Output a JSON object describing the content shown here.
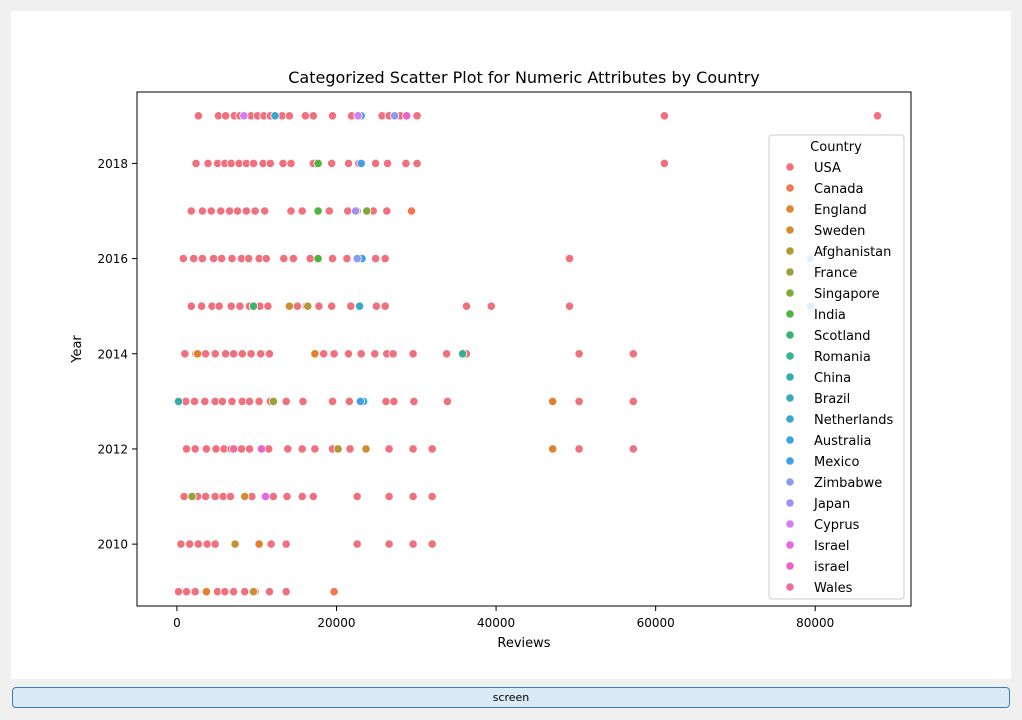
{
  "button": {
    "label": "screen"
  },
  "chart_data": {
    "type": "scatter",
    "title": "Categorized Scatter Plot for Numeric Attributes by Country",
    "xlabel": "Reviews",
    "ylabel": "Year",
    "xlim": [
      -5000,
      92000
    ],
    "ylim": [
      2008.7,
      2019.5
    ],
    "xticks": [
      0,
      20000,
      40000,
      60000,
      80000
    ],
    "xtick_labels": [
      "0",
      "20000",
      "40000",
      "60000",
      "80000"
    ],
    "yticks": [
      2010,
      2012,
      2014,
      2016,
      2018
    ],
    "ytick_labels": [
      "2010",
      "2012",
      "2014",
      "2016",
      "2018"
    ],
    "grid": false,
    "legend": {
      "title": "Country",
      "placement": "right"
    },
    "series": [
      {
        "name": "USA",
        "color": "#f0707e",
        "points": [
          [
            2700,
            2019
          ],
          [
            5200,
            2019
          ],
          [
            6100,
            2019
          ],
          [
            7200,
            2019
          ],
          [
            7900,
            2019
          ],
          [
            8600,
            2019
          ],
          [
            9300,
            2019
          ],
          [
            10100,
            2019
          ],
          [
            10900,
            2019
          ],
          [
            11700,
            2019
          ],
          [
            13200,
            2019
          ],
          [
            14100,
            2019
          ],
          [
            16100,
            2019
          ],
          [
            17100,
            2019
          ],
          [
            19500,
            2019
          ],
          [
            21900,
            2019
          ],
          [
            25700,
            2019
          ],
          [
            26600,
            2019
          ],
          [
            28000,
            2019
          ],
          [
            30100,
            2019
          ],
          [
            61100,
            2019
          ],
          [
            87800,
            2019
          ],
          [
            2400,
            2018
          ],
          [
            3900,
            2018
          ],
          [
            5100,
            2018
          ],
          [
            6000,
            2018
          ],
          [
            6800,
            2018
          ],
          [
            7800,
            2018
          ],
          [
            8700,
            2018
          ],
          [
            9600,
            2018
          ],
          [
            10800,
            2018
          ],
          [
            11700,
            2018
          ],
          [
            13300,
            2018
          ],
          [
            14300,
            2018
          ],
          [
            17100,
            2018
          ],
          [
            19400,
            2018
          ],
          [
            21500,
            2018
          ],
          [
            22800,
            2018
          ],
          [
            24900,
            2018
          ],
          [
            26400,
            2018
          ],
          [
            28700,
            2018
          ],
          [
            30100,
            2018
          ],
          [
            61100,
            2018
          ],
          [
            1800,
            2017
          ],
          [
            3200,
            2017
          ],
          [
            4300,
            2017
          ],
          [
            5500,
            2017
          ],
          [
            6600,
            2017
          ],
          [
            7600,
            2017
          ],
          [
            8700,
            2017
          ],
          [
            9800,
            2017
          ],
          [
            11000,
            2017
          ],
          [
            14300,
            2017
          ],
          [
            15700,
            2017
          ],
          [
            17700,
            2017
          ],
          [
            19100,
            2017
          ],
          [
            21400,
            2017
          ],
          [
            22600,
            2017
          ],
          [
            24600,
            2017
          ],
          [
            26300,
            2017
          ],
          [
            800,
            2016
          ],
          [
            2100,
            2016
          ],
          [
            3200,
            2016
          ],
          [
            4600,
            2016
          ],
          [
            5600,
            2016
          ],
          [
            6900,
            2016
          ],
          [
            8100,
            2016
          ],
          [
            9000,
            2016
          ],
          [
            10300,
            2016
          ],
          [
            11200,
            2016
          ],
          [
            13400,
            2016
          ],
          [
            14600,
            2016
          ],
          [
            16700,
            2016
          ],
          [
            19500,
            2016
          ],
          [
            21300,
            2016
          ],
          [
            22700,
            2016
          ],
          [
            24900,
            2016
          ],
          [
            26100,
            2016
          ],
          [
            49200,
            2016
          ],
          [
            1800,
            2015
          ],
          [
            3100,
            2015
          ],
          [
            4400,
            2015
          ],
          [
            5300,
            2015
          ],
          [
            6800,
            2015
          ],
          [
            7900,
            2015
          ],
          [
            9100,
            2015
          ],
          [
            10400,
            2015
          ],
          [
            11400,
            2015
          ],
          [
            15100,
            2015
          ],
          [
            16200,
            2015
          ],
          [
            17800,
            2015
          ],
          [
            19400,
            2015
          ],
          [
            21800,
            2015
          ],
          [
            25000,
            2015
          ],
          [
            26100,
            2015
          ],
          [
            36300,
            2015
          ],
          [
            39400,
            2015
          ],
          [
            49200,
            2015
          ],
          [
            1000,
            2014
          ],
          [
            2400,
            2014
          ],
          [
            3600,
            2014
          ],
          [
            4800,
            2014
          ],
          [
            6100,
            2014
          ],
          [
            7100,
            2014
          ],
          [
            8200,
            2014
          ],
          [
            9300,
            2014
          ],
          [
            10500,
            2014
          ],
          [
            11600,
            2014
          ],
          [
            18400,
            2014
          ],
          [
            19700,
            2014
          ],
          [
            21500,
            2014
          ],
          [
            23100,
            2014
          ],
          [
            24800,
            2014
          ],
          [
            26300,
            2014
          ],
          [
            27100,
            2014
          ],
          [
            29600,
            2014
          ],
          [
            33800,
            2014
          ],
          [
            36300,
            2014
          ],
          [
            50400,
            2014
          ],
          [
            57200,
            2014
          ],
          [
            1100,
            2013
          ],
          [
            2200,
            2013
          ],
          [
            3500,
            2013
          ],
          [
            4800,
            2013
          ],
          [
            5700,
            2013
          ],
          [
            6900,
            2013
          ],
          [
            8200,
            2013
          ],
          [
            9100,
            2013
          ],
          [
            10300,
            2013
          ],
          [
            11700,
            2013
          ],
          [
            13700,
            2013
          ],
          [
            15800,
            2013
          ],
          [
            19500,
            2013
          ],
          [
            21600,
            2013
          ],
          [
            26200,
            2013
          ],
          [
            27200,
            2013
          ],
          [
            29700,
            2013
          ],
          [
            33900,
            2013
          ],
          [
            50400,
            2013
          ],
          [
            57200,
            2013
          ],
          [
            1200,
            2012
          ],
          [
            2300,
            2012
          ],
          [
            3700,
            2012
          ],
          [
            4900,
            2012
          ],
          [
            5900,
            2012
          ],
          [
            6800,
            2012
          ],
          [
            8100,
            2012
          ],
          [
            9100,
            2012
          ],
          [
            10600,
            2012
          ],
          [
            11500,
            2012
          ],
          [
            13900,
            2012
          ],
          [
            15700,
            2012
          ],
          [
            17300,
            2012
          ],
          [
            19500,
            2012
          ],
          [
            21700,
            2012
          ],
          [
            26600,
            2012
          ],
          [
            29600,
            2012
          ],
          [
            32000,
            2012
          ],
          [
            50400,
            2012
          ],
          [
            57200,
            2012
          ],
          [
            900,
            2011
          ],
          [
            2600,
            2011
          ],
          [
            3600,
            2011
          ],
          [
            4800,
            2011
          ],
          [
            5800,
            2011
          ],
          [
            6700,
            2011
          ],
          [
            8500,
            2011
          ],
          [
            9400,
            2011
          ],
          [
            12100,
            2011
          ],
          [
            13800,
            2011
          ],
          [
            15700,
            2011
          ],
          [
            17100,
            2011
          ],
          [
            22600,
            2011
          ],
          [
            26600,
            2011
          ],
          [
            29600,
            2011
          ],
          [
            32000,
            2011
          ],
          [
            500,
            2010
          ],
          [
            1600,
            2010
          ],
          [
            2700,
            2010
          ],
          [
            3800,
            2010
          ],
          [
            4800,
            2010
          ],
          [
            11800,
            2010
          ],
          [
            13700,
            2010
          ],
          [
            22600,
            2010
          ],
          [
            26600,
            2010
          ],
          [
            29600,
            2010
          ],
          [
            32000,
            2010
          ],
          [
            200,
            2009
          ],
          [
            1200,
            2009
          ],
          [
            2300,
            2009
          ],
          [
            3700,
            2009
          ],
          [
            5100,
            2009
          ],
          [
            6000,
            2009
          ],
          [
            7100,
            2009
          ],
          [
            8500,
            2009
          ],
          [
            9800,
            2009
          ],
          [
            11600,
            2009
          ],
          [
            13700,
            2009
          ]
        ]
      },
      {
        "name": "Canada",
        "color": "#f37651",
        "points": [
          [
            19700,
            2009
          ],
          [
            29400,
            2017
          ]
        ]
      },
      {
        "name": "England",
        "color": "#e5802d",
        "points": [
          [
            2600,
            2014
          ],
          [
            17300,
            2014
          ],
          [
            47100,
            2013
          ],
          [
            47100,
            2012
          ],
          [
            3700,
            2009
          ],
          [
            10300,
            2010
          ]
        ]
      },
      {
        "name": "Sweden",
        "color": "#cf8f30",
        "points": [
          [
            7300,
            2010
          ],
          [
            8500,
            2011
          ],
          [
            23700,
            2012
          ],
          [
            14100,
            2015
          ],
          [
            9600,
            2009
          ]
        ]
      },
      {
        "name": "Afghanistan",
        "color": "#b19a33",
        "points": [
          [
            20200,
            2012
          ],
          [
            16400,
            2015
          ]
        ]
      },
      {
        "name": "France",
        "color": "#9aa236",
        "points": [
          [
            12100,
            2013
          ],
          [
            1900,
            2011
          ]
        ]
      },
      {
        "name": "Singapore",
        "color": "#7dab3a",
        "points": [
          [
            23800,
            2017
          ]
        ]
      },
      {
        "name": "India",
        "color": "#52b23d",
        "points": [
          [
            17700,
            2018
          ],
          [
            17700,
            2017
          ],
          [
            17700,
            2016
          ]
        ]
      },
      {
        "name": "Scotland",
        "color": "#3ab36e",
        "points": [
          [
            9600,
            2015
          ]
        ]
      },
      {
        "name": "Romania",
        "color": "#36b293",
        "points": [
          [
            35800,
            2014
          ]
        ]
      },
      {
        "name": "China",
        "color": "#35aeaa",
        "points": [
          [
            200,
            2013
          ]
        ]
      },
      {
        "name": "Brazil",
        "color": "#36acbc",
        "points": [
          [
            23400,
            2013
          ]
        ]
      },
      {
        "name": "Netherlands",
        "color": "#38a8cc",
        "points": [
          [
            12300,
            2019
          ],
          [
            22900,
            2015
          ]
        ]
      },
      {
        "name": "Australia",
        "color": "#3ba3de",
        "points": [
          [
            23200,
            2016
          ]
        ]
      },
      {
        "name": "Mexico",
        "color": "#42a0ea",
        "points": [
          [
            23100,
            2019
          ],
          [
            23100,
            2018
          ],
          [
            79400,
            2016
          ],
          [
            79400,
            2015
          ],
          [
            23000,
            2013
          ]
        ]
      },
      {
        "name": "Zimbabwe",
        "color": "#8a9bf0",
        "points": [
          [
            27300,
            2019
          ],
          [
            22600,
            2016
          ]
        ]
      },
      {
        "name": "Japan",
        "color": "#a58ef3",
        "points": [
          [
            22400,
            2017
          ]
        ]
      },
      {
        "name": "Cyprus",
        "color": "#d37ef2",
        "points": [
          [
            8400,
            2019
          ],
          [
            22700,
            2019
          ]
        ]
      },
      {
        "name": "Israel",
        "color": "#e865e8",
        "points": [
          [
            11100,
            2011
          ]
        ]
      },
      {
        "name": "israel",
        "color": "#f061c8",
        "points": [
          [
            28800,
            2019
          ],
          [
            10600,
            2012
          ]
        ]
      },
      {
        "name": "Wales",
        "color": "#f36a9e",
        "points": [
          [
            7100,
            2012
          ]
        ]
      }
    ]
  }
}
